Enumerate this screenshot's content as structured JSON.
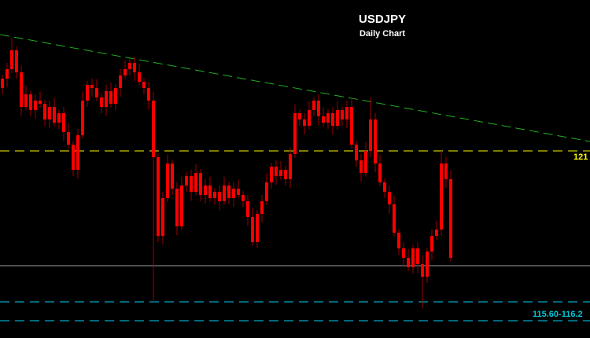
{
  "chart_data": {
    "type": "candlestick",
    "title": "USDJPY",
    "subtitle": "Daily Chart",
    "ylim": [
      115.3,
      125.6
    ],
    "grid": false,
    "candle_color": "#ff0000",
    "first_open": 123.0,
    "close": [
      123.3,
      123.6,
      124.2,
      123.5,
      122.4,
      122.8,
      122.3,
      122.6,
      122.5,
      122.0,
      122.4,
      121.9,
      122.2,
      121.6,
      121.2,
      120.4,
      121.5,
      122.6,
      123.1,
      123.0,
      122.7,
      122.4,
      122.9,
      122.5,
      123.0,
      123.4,
      123.6,
      123.8,
      123.5,
      123.2,
      123.0,
      122.6,
      120.8,
      118.3,
      119.5,
      120.6,
      119.8,
      118.6,
      119.9,
      120.2,
      119.7,
      120.3,
      119.6,
      119.9,
      119.5,
      119.7,
      119.4,
      119.9,
      119.5,
      119.8,
      119.6,
      119.4,
      118.9,
      118.1,
      119.0,
      119.4,
      120.0,
      120.5,
      120.2,
      120.4,
      120.1,
      120.9,
      122.2,
      122.0,
      121.8,
      122.3,
      122.6,
      122.1,
      121.9,
      122.2,
      121.8,
      122.3,
      122.0,
      122.4,
      121.2,
      120.7,
      120.3,
      121.0,
      122.0,
      120.6,
      120.0,
      119.7,
      119.3,
      118.4,
      117.9,
      117.6,
      117.3,
      117.9,
      117.4,
      117.0,
      117.8,
      118.3,
      118.5,
      120.6,
      120.1,
      117.6
    ],
    "extremes": [
      {
        "index": 2,
        "high": 124.6
      },
      {
        "index": 28,
        "high": 124.0
      },
      {
        "index": 32,
        "low": 116.2
      },
      {
        "index": 78,
        "high": 122.7
      },
      {
        "index": 89,
        "low": 116.0
      },
      {
        "index": 93,
        "high": 121.0
      }
    ],
    "lines": {
      "trendline": {
        "start": 124.7,
        "end": 121.3,
        "color": "#22b022",
        "style": "dashed"
      },
      "resistance": {
        "value": 121,
        "label": "121",
        "color": "#c8c800",
        "style": "dashed"
      },
      "support_zone_upper": {
        "value": 116.2,
        "color": "#00a8c8",
        "style": "dashed"
      },
      "support_zone_lower": {
        "value": 115.6,
        "color": "#00a8c8",
        "style": "dashed"
      },
      "support_zone_label": "115.60-116.2",
      "current": {
        "value": 117.35,
        "color": "#7a7f88",
        "style": "solid"
      }
    }
  }
}
